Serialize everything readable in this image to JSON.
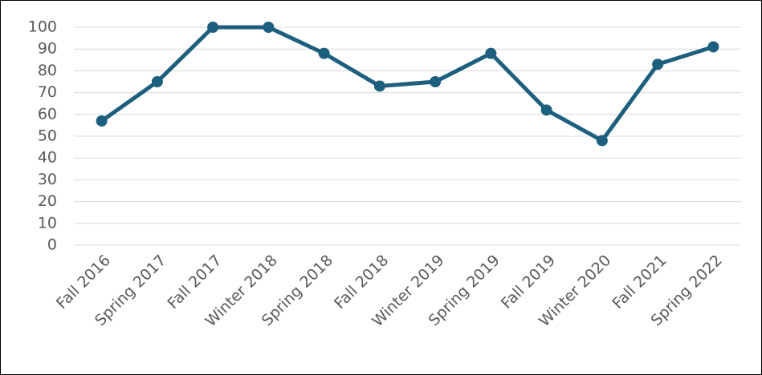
{
  "chart_data": {
    "type": "line",
    "categories": [
      "Fall 2016",
      "Spring 2017",
      "Fall 2017",
      "Winter 2018",
      "Spring 2018",
      "Fall 2018",
      "Winter 2019",
      "Spring 2019",
      "Fall 2019",
      "Winter 2020",
      "Fall 2021",
      "Spring 2022"
    ],
    "values": [
      57,
      75,
      100,
      100,
      88,
      73,
      75,
      88,
      62,
      48,
      83,
      91
    ],
    "color": "#1d5f7e",
    "ylim": [
      0,
      100
    ],
    "yticks": [
      0,
      10,
      20,
      30,
      40,
      50,
      60,
      70,
      80,
      90,
      100
    ],
    "grid": true
  }
}
